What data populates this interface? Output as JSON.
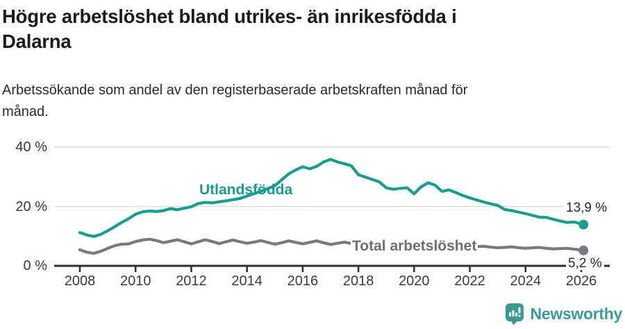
{
  "header": {
    "title_lines": [
      "Högre arbetslöshet bland utrikes- än inrikesfödda i",
      "Dalarna"
    ],
    "subtitle_lines": [
      "Arbetssökande som andel av den registerbaserade arbetskraften månad för",
      "månad."
    ]
  },
  "chart_data": {
    "type": "line",
    "title": "Högre arbetslöshet bland utrikes- än inrikesfödda i Dalarna",
    "subtitle": "Arbetssökande som andel av den registerbaserade arbetskraften månad för månad.",
    "unit": "%",
    "grid": true,
    "x_axis": {
      "min": 2008,
      "max": 2026,
      "ticks": [
        "2008",
        "2010",
        "2012",
        "2014",
        "2016",
        "2018",
        "2020",
        "2022",
        "2024",
        "2026"
      ]
    },
    "y_axis": {
      "min": 0,
      "max": 44,
      "ticks": [
        {
          "value": 0,
          "label": "0 %"
        },
        {
          "value": 20,
          "label": "20 %"
        },
        {
          "value": 40,
          "label": "40 %"
        }
      ]
    },
    "series": [
      {
        "name": "Total arbetslöshet",
        "color": "#7a7980",
        "label_color": "#6e6d73",
        "x_start": 2008,
        "x_step": 0.25,
        "values": [
          5.4,
          4.6,
          4.2,
          4.9,
          5.9,
          6.8,
          7.3,
          7.4,
          8.2,
          8.7,
          9.0,
          8.5,
          7.8,
          8.3,
          8.8,
          8.1,
          7.4,
          8.1,
          8.8,
          8.2,
          7.5,
          8.1,
          8.7,
          8.1,
          7.6,
          8.0,
          8.5,
          7.9,
          7.3,
          7.8,
          8.4,
          7.9,
          7.4,
          7.9,
          8.4,
          7.8,
          7.2,
          7.6,
          8.0,
          7.5,
          6.9,
          7.3,
          7.7,
          7.2,
          6.8,
          7.1,
          7.5,
          7.0,
          6.8,
          8.0,
          8.6,
          8.3,
          7.9,
          7.7,
          7.4,
          7.0,
          6.6,
          6.5,
          6.6,
          6.3,
          6.1,
          6.2,
          6.4,
          6.1,
          5.9,
          6.1,
          6.2,
          5.9,
          5.7,
          5.8,
          5.9,
          5.6,
          5.3
        ],
        "end_x": 2026.08,
        "end_value": 5.2,
        "end_label": "5,2 %"
      },
      {
        "name": "Utlandsfödda",
        "color": "#1a9c8e",
        "label_color": "#1a9c8e",
        "x_start": 2008,
        "x_step": 0.25,
        "values": [
          11.2,
          10.4,
          9.9,
          10.6,
          11.8,
          13.2,
          14.6,
          15.9,
          17.4,
          18.2,
          18.5,
          18.3,
          18.6,
          19.3,
          18.9,
          19.4,
          19.9,
          21.0,
          21.4,
          21.2,
          21.6,
          21.9,
          22.3,
          22.7,
          23.5,
          24.3,
          25.1,
          26.0,
          27.0,
          29.0,
          31.0,
          32.3,
          33.4,
          32.7,
          33.5,
          35.0,
          35.9,
          35.0,
          34.4,
          33.7,
          30.7,
          29.9,
          29.1,
          28.3,
          26.3,
          25.8,
          26.1,
          26.3,
          24.3,
          26.6,
          28.0,
          27.2,
          25.1,
          25.6,
          24.7,
          23.7,
          22.9,
          22.2,
          21.5,
          20.9,
          20.4,
          19.0,
          18.6,
          18.1,
          17.6,
          17.0,
          16.4,
          16.3,
          15.7,
          15.1,
          14.6,
          14.8,
          14.1
        ],
        "end_x": 2026.08,
        "end_value": 13.9,
        "end_label": "13,9 %"
      }
    ],
    "legend_position": "inline-labels"
  },
  "style": {
    "axis_color": "#2d2d2d",
    "grid_color": "#dcdcdc",
    "tick_text_color": "#3a3a3a"
  },
  "footer": {
    "brand": "Newsworthy",
    "brand_color": "#3d9a93",
    "logo_icon": "bar-chart-speech-bubble-icon"
  }
}
